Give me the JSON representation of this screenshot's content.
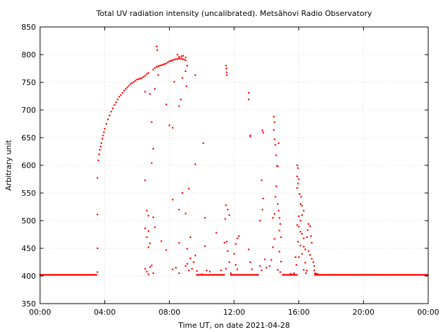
{
  "chart_data": {
    "type": "scatter",
    "title": "Total UV radiation intensity (uncalibrated). Metsähovi Radio Observatory",
    "xlabel": "Time UT, on date 2021-04-28",
    "ylabel": "Arbitrary unit",
    "x_unit": "hours UT",
    "xlim": [
      0,
      24
    ],
    "ylim": [
      350,
      850
    ],
    "x_ticks": [
      {
        "value": 0,
        "label": "00:00"
      },
      {
        "value": 4,
        "label": "04:00"
      },
      {
        "value": 8,
        "label": "08:00"
      },
      {
        "value": 12,
        "label": "12:00"
      },
      {
        "value": 16,
        "label": "16:00"
      },
      {
        "value": 20,
        "label": "20:00"
      },
      {
        "value": 24,
        "label": "00:00"
      }
    ],
    "y_ticks": [
      {
        "value": 350,
        "label": "350"
      },
      {
        "value": 400,
        "label": "400"
      },
      {
        "value": 450,
        "label": "450"
      },
      {
        "value": 500,
        "label": "500"
      },
      {
        "value": 550,
        "label": "550"
      },
      {
        "value": 600,
        "label": "600"
      },
      {
        "value": 650,
        "label": "650"
      },
      {
        "value": 700,
        "label": "700"
      },
      {
        "value": 750,
        "label": "750"
      },
      {
        "value": 800,
        "label": "800"
      },
      {
        "value": 850,
        "label": "850"
      }
    ],
    "grid": true,
    "marker_color": "#ff0000",
    "series": [
      {
        "points": [
          [
            3.55,
            577
          ],
          [
            3.55,
            511
          ],
          [
            3.55,
            450
          ],
          [
            3.55,
            407
          ],
          [
            3.6,
            609
          ],
          [
            3.65,
            620
          ],
          [
            3.7,
            628
          ],
          [
            3.75,
            634
          ],
          [
            3.8,
            640
          ],
          [
            3.85,
            648
          ],
          [
            3.9,
            654
          ],
          [
            3.95,
            660
          ],
          [
            4.0,
            666
          ],
          [
            4.1,
            675
          ],
          [
            4.2,
            683
          ],
          [
            4.3,
            690
          ],
          [
            4.4,
            697
          ],
          [
            4.5,
            703
          ],
          [
            4.6,
            709
          ],
          [
            4.7,
            714
          ],
          [
            4.8,
            719
          ],
          [
            4.9,
            724
          ],
          [
            5.0,
            727
          ],
          [
            5.1,
            731
          ],
          [
            5.2,
            735
          ],
          [
            5.3,
            738
          ],
          [
            5.4,
            741
          ],
          [
            5.5,
            744
          ],
          [
            5.6,
            747
          ],
          [
            5.7,
            749
          ],
          [
            5.8,
            751
          ],
          [
            5.9,
            753
          ],
          [
            6.0,
            755
          ],
          [
            6.1,
            756
          ],
          [
            6.2,
            757
          ],
          [
            6.3,
            758
          ],
          [
            6.4,
            760
          ],
          [
            6.5,
            762
          ],
          [
            6.6,
            765
          ],
          [
            6.7,
            767
          ],
          [
            7.0,
            773
          ],
          [
            7.1,
            776
          ],
          [
            7.2,
            778
          ],
          [
            7.3,
            779
          ],
          [
            7.4,
            780
          ],
          [
            7.5,
            781
          ],
          [
            7.6,
            782
          ],
          [
            7.7,
            783
          ],
          [
            7.8,
            784
          ],
          [
            7.9,
            786
          ],
          [
            8.0,
            788
          ],
          [
            8.1,
            789
          ],
          [
            8.2,
            790
          ],
          [
            8.3,
            791
          ],
          [
            8.4,
            792
          ],
          [
            8.5,
            792
          ],
          [
            8.6,
            793
          ],
          [
            8.7,
            793
          ],
          [
            8.8,
            792
          ],
          [
            8.9,
            791
          ],
          [
            9.0,
            790
          ],
          [
            7.2,
            815
          ],
          [
            7.25,
            808
          ],
          [
            8.5,
            800
          ],
          [
            8.6,
            796
          ],
          [
            8.75,
            797
          ],
          [
            8.85,
            798
          ],
          [
            9.0,
            795
          ],
          [
            7.3,
            763
          ],
          [
            7.1,
            738
          ],
          [
            6.8,
            729
          ],
          [
            6.5,
            733
          ],
          [
            7.8,
            710
          ],
          [
            8.3,
            751
          ],
          [
            8.7,
            719
          ],
          [
            8.6,
            707
          ],
          [
            9.1,
            780
          ],
          [
            9.0,
            770
          ],
          [
            8.8,
            758
          ],
          [
            9.05,
            743
          ],
          [
            9.6,
            763
          ],
          [
            6.9,
            678
          ],
          [
            7.0,
            630
          ],
          [
            8.0,
            672
          ],
          [
            8.2,
            668
          ],
          [
            6.9,
            604
          ],
          [
            9.6,
            602
          ],
          [
            10.1,
            640
          ],
          [
            6.5,
            573
          ],
          [
            8.8,
            550
          ],
          [
            9.2,
            558
          ],
          [
            8.2,
            538
          ],
          [
            8.6,
            520
          ],
          [
            6.6,
            518
          ],
          [
            6.7,
            509
          ],
          [
            9.0,
            513
          ],
          [
            10.2,
            505
          ],
          [
            7.0,
            506
          ],
          [
            6.5,
            486
          ],
          [
            6.7,
            481
          ],
          [
            7.1,
            488
          ],
          [
            6.6,
            470
          ],
          [
            7.5,
            463
          ],
          [
            8.6,
            460
          ],
          [
            9.3,
            470
          ],
          [
            6.8,
            459
          ],
          [
            6.7,
            452
          ],
          [
            9.1,
            449
          ],
          [
            10.2,
            454
          ],
          [
            7.8,
            447
          ],
          [
            6.5,
            413
          ],
          [
            6.6,
            408
          ],
          [
            6.8,
            416
          ],
          [
            6.9,
            419
          ],
          [
            7.0,
            405
          ],
          [
            6.7,
            403
          ],
          [
            8.2,
            412
          ],
          [
            8.4,
            415
          ],
          [
            8.6,
            405
          ],
          [
            9.0,
            418
          ],
          [
            9.1,
            422
          ],
          [
            9.2,
            410
          ],
          [
            9.3,
            432
          ],
          [
            9.4,
            413
          ],
          [
            9.5,
            425
          ],
          [
            9.6,
            437
          ],
          [
            9.7,
            409
          ],
          [
            10.0,
            403
          ],
          [
            10.3,
            410
          ],
          [
            10.5,
            408
          ],
          [
            10.9,
            478
          ],
          [
            11.2,
            410
          ],
          [
            11.5,
            413
          ],
          [
            11.4,
            460
          ],
          [
            11.5,
            780
          ],
          [
            11.52,
            775
          ],
          [
            11.54,
            768
          ],
          [
            11.55,
            763
          ],
          [
            11.5,
            528
          ],
          [
            11.6,
            520
          ],
          [
            11.7,
            510
          ],
          [
            11.45,
            503
          ],
          [
            11.55,
            462
          ],
          [
            11.6,
            445
          ],
          [
            11.7,
            425
          ],
          [
            11.8,
            405
          ],
          [
            12.2,
            468
          ],
          [
            12.3,
            472
          ],
          [
            12.1,
            458
          ],
          [
            12.0,
            440
          ],
          [
            12.1,
            420
          ],
          [
            12.2,
            412
          ],
          [
            12.9,
            731
          ],
          [
            12.9,
            719
          ],
          [
            13.0,
            654
          ],
          [
            13.0,
            652
          ],
          [
            12.9,
            448
          ],
          [
            13.0,
            425
          ],
          [
            13.1,
            412
          ],
          [
            13.6,
            500
          ],
          [
            13.7,
            573
          ],
          [
            13.75,
            520
          ],
          [
            13.8,
            540
          ],
          [
            13.75,
            663
          ],
          [
            13.8,
            659
          ],
          [
            13.6,
            418
          ],
          [
            13.7,
            410
          ],
          [
            13.9,
            430
          ],
          [
            14.0,
            415
          ],
          [
            14.2,
            418
          ],
          [
            14.3,
            429
          ],
          [
            14.4,
            452
          ],
          [
            14.5,
            467
          ],
          [
            14.4,
            505
          ],
          [
            14.5,
            512
          ],
          [
            14.45,
            688
          ],
          [
            14.5,
            678
          ],
          [
            14.45,
            664
          ],
          [
            14.5,
            647
          ],
          [
            14.55,
            637
          ],
          [
            14.6,
            618
          ],
          [
            14.65,
            599
          ],
          [
            14.7,
            598
          ],
          [
            14.75,
            640
          ],
          [
            14.6,
            562
          ],
          [
            14.55,
            543
          ],
          [
            14.7,
            530
          ],
          [
            14.75,
            518
          ],
          [
            14.8,
            505
          ],
          [
            14.85,
            494
          ],
          [
            14.8,
            482
          ],
          [
            14.9,
            470
          ],
          [
            14.8,
            444
          ],
          [
            14.9,
            426
          ],
          [
            14.7,
            411
          ],
          [
            14.85,
            407
          ],
          [
            15.5,
            404
          ],
          [
            15.6,
            402
          ],
          [
            15.7,
            405
          ],
          [
            15.8,
            434
          ],
          [
            15.85,
            420
          ],
          [
            15.9,
            600
          ],
          [
            15.95,
            595
          ],
          [
            15.9,
            580
          ],
          [
            16.0,
            575
          ],
          [
            15.95,
            567
          ],
          [
            15.9,
            559
          ],
          [
            16.05,
            548
          ],
          [
            16.1,
            530
          ],
          [
            16.15,
            543
          ],
          [
            16.2,
            527
          ],
          [
            16.0,
            508
          ],
          [
            16.1,
            500
          ],
          [
            16.2,
            510
          ],
          [
            16.3,
            518
          ],
          [
            15.9,
            492
          ],
          [
            16.0,
            489
          ],
          [
            16.1,
            480
          ],
          [
            16.2,
            476
          ],
          [
            16.3,
            468
          ],
          [
            15.95,
            462
          ],
          [
            16.1,
            455
          ],
          [
            16.2,
            440
          ],
          [
            16.3,
            453
          ],
          [
            16.4,
            448
          ],
          [
            16.5,
            470
          ],
          [
            16.55,
            483
          ],
          [
            16.6,
            494
          ],
          [
            16.7,
            490
          ],
          [
            16.75,
            472
          ],
          [
            16.8,
            460
          ],
          [
            16.6,
            445
          ],
          [
            16.7,
            438
          ],
          [
            16.8,
            431
          ],
          [
            16.9,
            425
          ],
          [
            16.95,
            418
          ],
          [
            16.4,
            424
          ],
          [
            16.5,
            410
          ],
          [
            16.3,
            411
          ],
          [
            16.0,
            434
          ],
          [
            16.45,
            405
          ],
          [
            17.0,
            405
          ],
          [
            17.1,
            404
          ],
          [
            17.2,
            403
          ],
          [
            16.95,
            410
          ]
        ],
        "baseline_segments": [
          {
            "x_start": 0,
            "x_end": 3.5,
            "step": 0.06,
            "value": 402
          },
          {
            "x_start": 9.7,
            "x_end": 11.4,
            "step": 0.08,
            "value": 402
          },
          {
            "x_start": 11.8,
            "x_end": 13.5,
            "step": 0.08,
            "value": 402
          },
          {
            "x_start": 15.0,
            "x_end": 15.9,
            "step": 0.08,
            "value": 402
          },
          {
            "x_start": 17.0,
            "x_end": 24,
            "step": 0.06,
            "value": 402
          }
        ]
      }
    ]
  }
}
